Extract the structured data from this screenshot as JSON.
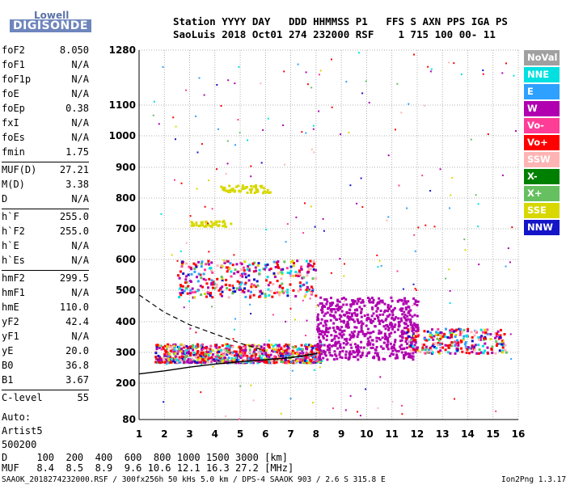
{
  "logo": {
    "line1": "Lowell",
    "line2": "DIGISONDE"
  },
  "header": {
    "row1": "Station YYYY DAY   DDD HHMMSS P1   FFS S AXN PPS IGA PS",
    "row2": "SaoLuis 2018 Oct01 274 232000 RSF    1 715 100 00- 11"
  },
  "params": [
    {
      "label": "foF2",
      "value": "8.050"
    },
    {
      "label": "foF1",
      "value": "N/A"
    },
    {
      "label": "foF1p",
      "value": "N/A"
    },
    {
      "label": "foE",
      "value": "N/A"
    },
    {
      "label": "foEp",
      "value": "0.38"
    },
    {
      "label": "fxI",
      "value": "N/A"
    },
    {
      "label": "foEs",
      "value": "N/A"
    },
    {
      "label": "fmin",
      "value": "1.75"
    },
    {
      "label": "MUF(D)",
      "value": "27.21"
    },
    {
      "label": "M(D)",
      "value": "3.38"
    },
    {
      "label": "D",
      "value": "N/A"
    },
    {
      "label": "h`F",
      "value": "255.0"
    },
    {
      "label": "h`F2",
      "value": "255.0"
    },
    {
      "label": "h`E",
      "value": "N/A"
    },
    {
      "label": "h`Es",
      "value": "N/A"
    },
    {
      "label": "hmF2",
      "value": "299.5"
    },
    {
      "label": "hmF1",
      "value": "N/A"
    },
    {
      "label": "hmE",
      "value": "110.0"
    },
    {
      "label": "yF2",
      "value": "42.4"
    },
    {
      "label": "yF1",
      "value": "N/A"
    },
    {
      "label": "yE",
      "value": "20.0"
    },
    {
      "label": "B0",
      "value": "36.8"
    },
    {
      "label": "B1",
      "value": "3.67"
    },
    {
      "label": "C-level",
      "value": "55"
    }
  ],
  "auto": {
    "label": "Auto:",
    "artist": "Artist5",
    "code": "500200"
  },
  "legend": [
    {
      "name": "NoVal",
      "color": "#a0a0a0"
    },
    {
      "name": "NNE",
      "color": "#00e0e0"
    },
    {
      "name": "E",
      "color": "#2ea0ff"
    },
    {
      "name": "W",
      "color": "#b000b0"
    },
    {
      "name": "Vo-",
      "color": "#ff3c96"
    },
    {
      "name": "Vo+",
      "color": "#ff0000"
    },
    {
      "name": "SSW",
      "color": "#ffb4b4"
    },
    {
      "name": "X-",
      "color": "#008000"
    },
    {
      "name": "X+",
      "color": "#66c060"
    },
    {
      "name": "SSE",
      "color": "#d8d800"
    },
    {
      "name": "NNW",
      "color": "#1414c8"
    }
  ],
  "muf_table": {
    "row1": "D     100  200  400  600  800 1000 1500 3000 [km]",
    "row2": "MUF   8.4  8.5  8.9  9.6 10.6 12.1 16.3 27.2 [MHz]"
  },
  "footer": {
    "left": "SAAOK_2018274232000.RSF / 300fx256h 50 kHs 5.0 km / DPS-4 SAAOK 903 / 2.6 S 315.8 E",
    "right": "Ion2Png 1.3.17"
  },
  "chart_data": {
    "type": "scatter",
    "xlabel": "",
    "ylabel": "",
    "x_ticks": [
      1,
      2,
      3,
      4,
      5,
      6,
      7,
      8,
      9,
      10,
      11,
      12,
      13,
      14,
      15,
      16
    ],
    "y_ticks": [
      80,
      200,
      300,
      400,
      500,
      600,
      700,
      800,
      900,
      1000,
      1100,
      1280
    ],
    "y_scale": "nonlinear (virtual height, km)",
    "grid": true,
    "legend_position": "right",
    "clusters": [
      {
        "name": "F trace main",
        "x": [
          1.6,
          8.2
        ],
        "y": [
          270,
          330
        ],
        "mode": "mixed"
      },
      {
        "name": "F trace high freq",
        "x": [
          8,
          12
        ],
        "y": [
          280,
          480
        ],
        "mode": "W"
      },
      {
        "name": "F spread extended",
        "x": [
          11.5,
          15.5
        ],
        "y": [
          300,
          380
        ],
        "mode": "mixed"
      },
      {
        "name": "Second hop band",
        "x": [
          2.5,
          8
        ],
        "y": [
          480,
          600
        ],
        "mode": "mixed"
      },
      {
        "name": "SSE band 830",
        "x": [
          4.2,
          6.2
        ],
        "y": [
          820,
          845
        ],
        "mode": "SSE"
      },
      {
        "name": "SSE band 720",
        "x": [
          3,
          4.6
        ],
        "y": [
          710,
          730
        ],
        "mode": "SSE"
      },
      {
        "name": "Scattered echoes",
        "x": [
          1.5,
          16
        ],
        "y": [
          80,
          1280
        ],
        "mode": "mixed"
      }
    ],
    "profile_curve": {
      "x": [
        1,
        2,
        3,
        4,
        5,
        6,
        7,
        8,
        8.05
      ],
      "y": [
        230,
        240,
        252,
        262,
        270,
        276,
        283,
        296,
        300
      ]
    },
    "dashed_curve": {
      "x": [
        1,
        2,
        3,
        4,
        5,
        6
      ],
      "y": [
        485,
        430,
        390,
        360,
        330,
        305
      ]
    }
  }
}
